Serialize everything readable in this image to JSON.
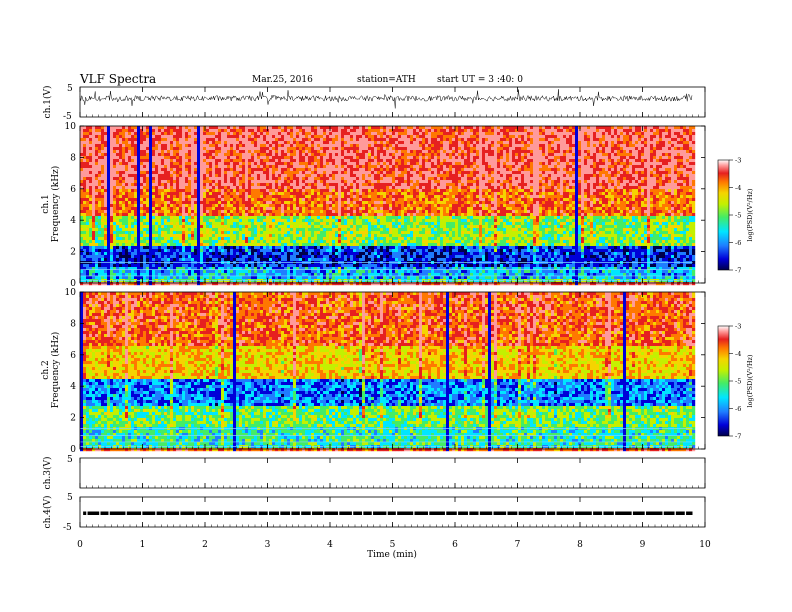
{
  "header": {
    "title": "VLF  Spectra",
    "date": "Mar.25, 2016",
    "station": "station=ATH",
    "start": "start  UT  =   3 :40: 0"
  },
  "colors": {
    "spectrogram": [
      "#00004a",
      "#0000d8",
      "#1f7dff",
      "#00e6ff",
      "#44ec66",
      "#c4f000",
      "#f5d400",
      "#ff7800",
      "#e62020",
      "#ff9a9a",
      "#ffffff"
    ]
  },
  "chart_data": [
    {
      "type": "line",
      "id": "ch1",
      "ylabel": "ch.1(V)",
      "ylim": [
        -5,
        5
      ],
      "yticks": [
        "5",
        "-5"
      ],
      "xlim": [
        0,
        10
      ],
      "series": [
        {
          "name": "",
          "description": "dense noisy waveform centered near 1.2 V, roughly ±1 V with spikes"
        }
      ]
    },
    {
      "type": "heatmap",
      "id": "ch1-spec",
      "ylabel_channel": "ch.1",
      "ylabel": "Frequency  (kHz)",
      "ylim": [
        0,
        10
      ],
      "yticks": [
        "0",
        "2",
        "4",
        "6",
        "8",
        "10"
      ],
      "xlim": [
        0,
        10
      ],
      "colorbar": {
        "label": "log(PSD)(V²/Hz)",
        "range": [
          -7,
          -3
        ],
        "ticks": [
          "-3",
          "-4",
          "-5",
          "-6",
          "-7"
        ]
      },
      "bands": [
        {
          "from_khz": 0,
          "to_khz": 0.3,
          "log_psd": -5.4
        },
        {
          "from_khz": 0.3,
          "to_khz": 1.1,
          "log_psd": -6.0
        },
        {
          "from_khz": 1.1,
          "to_khz": 2.4,
          "log_psd": -6.5
        },
        {
          "from_khz": 2.4,
          "to_khz": 4.2,
          "log_psd": -5.2
        },
        {
          "from_khz": 4.2,
          "to_khz": 6.0,
          "log_psd": -4.1
        },
        {
          "from_khz": 6.0,
          "to_khz": 10.0,
          "log_psd": -3.7
        }
      ]
    },
    {
      "type": "heatmap",
      "id": "ch2-spec",
      "ylabel_channel": "ch.2",
      "ylabel": "Frequency  (kHz)",
      "ylim": [
        0,
        10
      ],
      "yticks": [
        "0",
        "2",
        "4",
        "6",
        "8",
        "10"
      ],
      "xlim": [
        0,
        10
      ],
      "colorbar": {
        "label": "log(PSD)(V²/Hz)",
        "range": [
          -7,
          -3
        ],
        "ticks": [
          "-3",
          "-4",
          "-5",
          "-6",
          "-7"
        ]
      },
      "bands": [
        {
          "from_khz": 0,
          "to_khz": 1.4,
          "log_psd": -5.6
        },
        {
          "from_khz": 1.4,
          "to_khz": 2.8,
          "log_psd": -5.3
        },
        {
          "from_khz": 2.8,
          "to_khz": 4.5,
          "log_psd": -6.2
        },
        {
          "from_khz": 4.5,
          "to_khz": 6.5,
          "log_psd": -4.6
        },
        {
          "from_khz": 6.5,
          "to_khz": 10.0,
          "log_psd": -4.0
        }
      ]
    },
    {
      "type": "line",
      "id": "ch3",
      "ylabel": "ch.3(V)",
      "ylim": [
        -5,
        5
      ],
      "yticks": [
        "5"
      ],
      "xlim": [
        0,
        10
      ],
      "series": []
    },
    {
      "type": "line",
      "id": "ch4",
      "ylabel": "ch.4(V)",
      "ylim": [
        -5,
        5
      ],
      "yticks": [
        "5",
        "-5"
      ],
      "xlim": [
        0,
        10
      ],
      "series": [
        {
          "name": "",
          "description": "flat trace near -0.5 V across whole record"
        }
      ]
    }
  ],
  "xaxis": {
    "label": "Time  (min)",
    "range": [
      0,
      10
    ],
    "ticks": [
      "0",
      "1",
      "2",
      "3",
      "4",
      "5",
      "6",
      "7",
      "8",
      "9",
      "10"
    ],
    "data_end_min": 9.8
  }
}
